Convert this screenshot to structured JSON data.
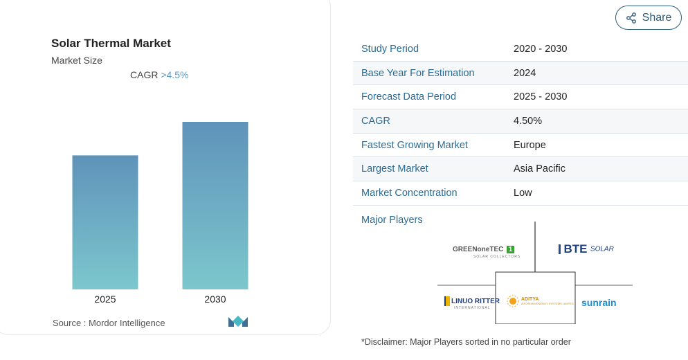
{
  "chart_data": {
    "type": "bar",
    "title": "Solar Thermal Market",
    "subtitle": "Market Size",
    "cagr_label": "CAGR",
    "cagr_value": ">4.5%",
    "categories": [
      "2025",
      "2030"
    ],
    "values": [
      1.0,
      1.25
    ],
    "colors": {
      "bar_top": "#5f93ba",
      "bar_bottom": "#7cc7cd"
    }
  },
  "source": {
    "label": "Source :",
    "name": "Mordor Intelligence"
  },
  "share": {
    "label": "Share"
  },
  "info_table": [
    {
      "key": "Study Period",
      "value": "2020 - 2030"
    },
    {
      "key": "Base Year For Estimation",
      "value": "2024"
    },
    {
      "key": "Forecast Data Period",
      "value": "2025 - 2030"
    },
    {
      "key": "CAGR",
      "value": "4.50%"
    },
    {
      "key": "Fastest Growing Market",
      "value": "Europe"
    },
    {
      "key": "Largest Market",
      "value": "Asia Pacific"
    },
    {
      "key": "Market Concentration",
      "value": "Low"
    }
  ],
  "major_players": {
    "title": "Major Players",
    "logos": {
      "greenonetec": {
        "main": "GREENoneTEC",
        "badge": "1",
        "sub": "SOLAR COLLECTORS"
      },
      "bte": {
        "main": "BTE",
        "sub": "SOLAR"
      },
      "linuo": {
        "main": "LINUO RITTER",
        "sub": "INTERNATIONAL"
      },
      "aditya": {
        "main": "ADITYA",
        "sub": "A ROSHAN ENERGY SYSTEMS LIMITED"
      },
      "sunrain": {
        "main": "sunrain"
      }
    }
  },
  "disclaimer": "*Disclaimer: Major Players sorted in no particular order"
}
